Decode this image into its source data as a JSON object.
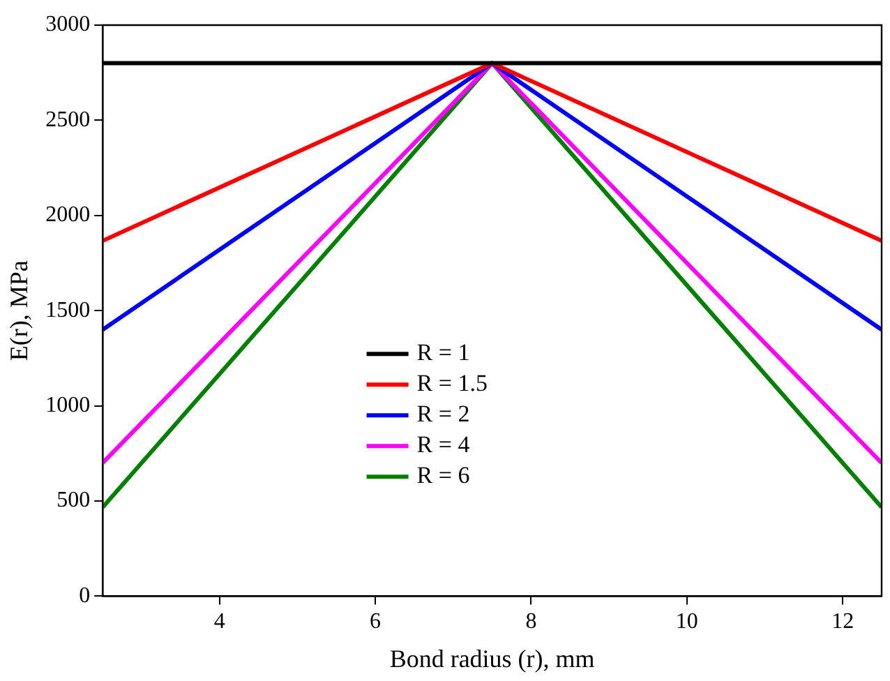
{
  "chart_data": {
    "type": "line",
    "xlabel": "Bond radius (r), mm",
    "ylabel": "E(r), MPa",
    "x": [
      2.5,
      7.5,
      12.5
    ],
    "series": [
      {
        "name": "R = 1",
        "color": "#000000",
        "values": [
          2800,
          2800,
          2800
        ]
      },
      {
        "name": "R = 1.5",
        "color": "#ff0000",
        "values": [
          1867,
          2800,
          1867
        ]
      },
      {
        "name": "R = 2",
        "color": "#0000ff",
        "values": [
          1400,
          2800,
          1400
        ]
      },
      {
        "name": "R = 4",
        "color": "#ff00ff",
        "values": [
          700,
          2800,
          700
        ]
      },
      {
        "name": "R = 6",
        "color": "#008000",
        "values": [
          467,
          2800,
          467
        ]
      }
    ],
    "xlim": [
      2.5,
      12.5
    ],
    "xticks": [
      4,
      6,
      8,
      10,
      12
    ],
    "ylim": [
      0,
      3000
    ],
    "yticks": [
      0,
      500,
      1000,
      1500,
      2000,
      2500,
      3000
    ],
    "grid": false,
    "legend": "center",
    "marker": "none",
    "line_style": "solid"
  }
}
